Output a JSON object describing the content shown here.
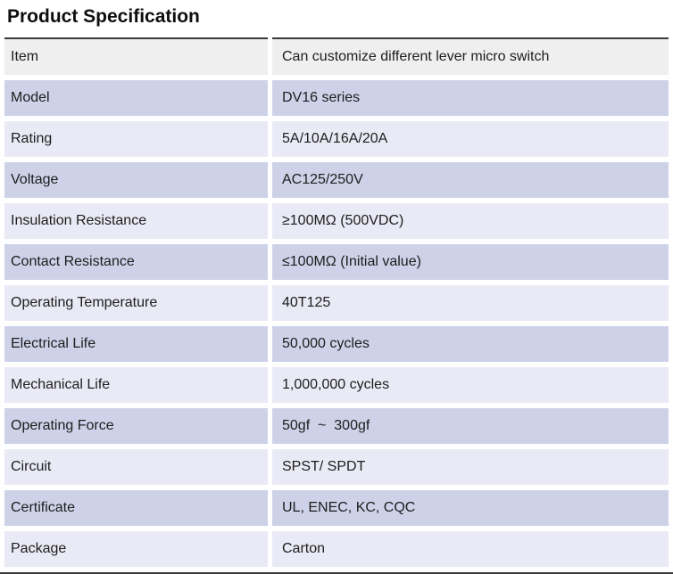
{
  "title": "Product Specification",
  "table": {
    "rows": [
      {
        "label": "Item",
        "value": "Can customize different lever micro switch"
      },
      {
        "label": "Model",
        "value": "DV16 series"
      },
      {
        "label": "Rating",
        "value": "5A/10A/16A/20A"
      },
      {
        "label": "Voltage",
        "value": "AC125/250V"
      },
      {
        "label": "Insulation Resistance",
        "value": "≥100MΩ (500VDC)"
      },
      {
        "label": "Contact Resistance",
        "value": "≤100MΩ (Initial value)"
      },
      {
        "label": "Operating Temperature",
        "value": "40T125"
      },
      {
        "label": "Electrical Life",
        "value": "50,000 cycles"
      },
      {
        "label": "Mechanical Life",
        "value": "1,000,000 cycles"
      },
      {
        "label": "Operating Force",
        "value": "50gf  ~  300gf"
      },
      {
        "label": "Circuit",
        "value": "SPST/ SPDT"
      },
      {
        "label": "Certificate",
        "value": "UL, ENEC, KC, CQC"
      },
      {
        "label": "Package",
        "value": "Carton"
      }
    ]
  },
  "colors": {
    "header-row-bg": "#efefef",
    "stripe-dark-bg": "#cdd2e8",
    "stripe-light-bg": "#e9eaf5",
    "rule-color": "#3a3a3a",
    "text-color": "#1d1d1d",
    "title-color": "#0f0f0f"
  }
}
